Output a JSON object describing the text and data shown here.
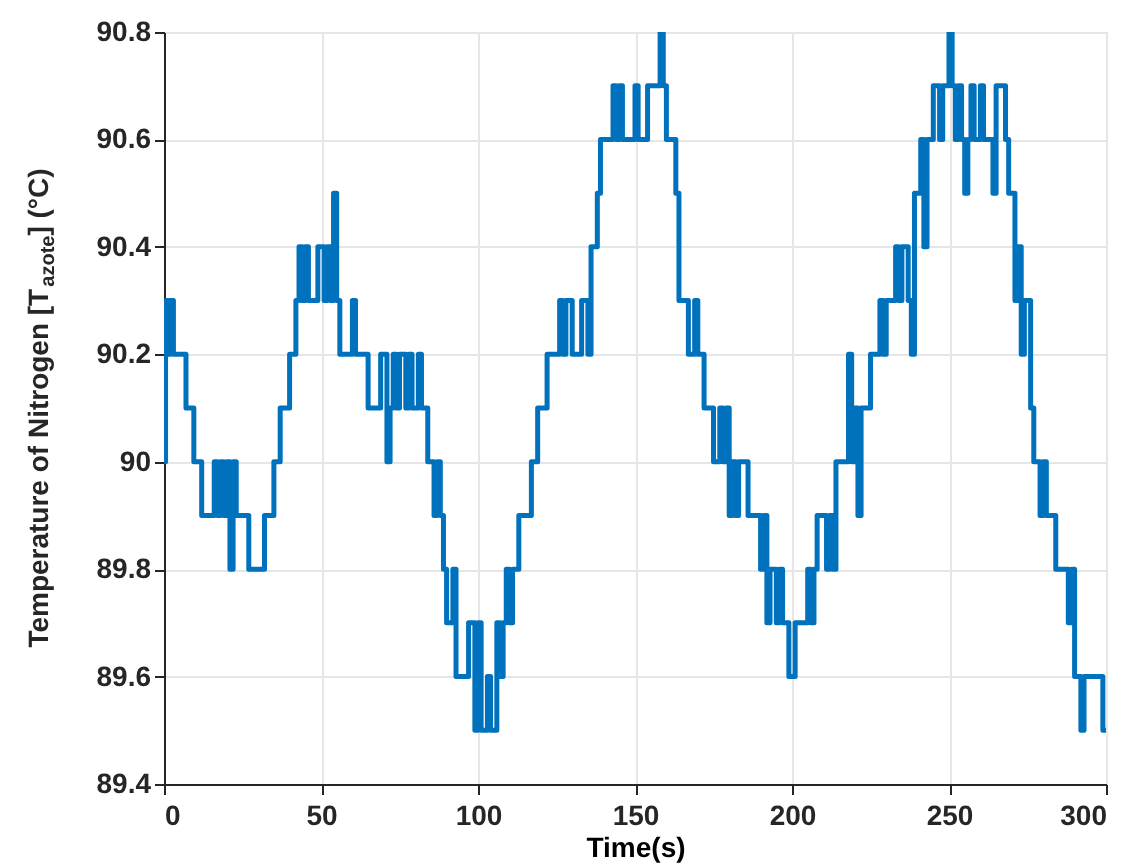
{
  "chart_data": {
    "type": "step",
    "xlabel": "Time(s)",
    "ylabel": "Temperature of Nitrogen [T$_{azote}$] (°C)",
    "xlim": [
      0,
      300
    ],
    "xticks": [
      0,
      50,
      100,
      150,
      200,
      250,
      300
    ],
    "ylim": [
      89.4,
      90.8
    ],
    "yticks": [
      89.4,
      89.6,
      89.8,
      90,
      90.2,
      90.4,
      90.6,
      90.8
    ],
    "grid": true,
    "line_style": "solid",
    "series": [
      {
        "color": "#0072bd",
        "x": [
          0,
          0.5,
          1.5,
          2,
          3,
          7,
          9.5,
          12,
          16,
          17,
          18,
          19,
          20,
          21,
          22,
          23,
          27,
          32,
          35,
          37,
          40,
          42,
          43,
          44,
          45,
          46,
          49,
          51,
          52,
          53,
          54,
          55,
          56,
          60,
          61,
          65,
          69,
          71,
          72,
          73,
          74,
          75,
          77,
          78,
          79,
          81,
          82,
          84,
          86,
          87,
          88,
          89,
          90,
          92,
          93,
          97,
          99,
          100,
          101,
          103,
          104,
          106,
          107,
          108,
          109,
          110,
          111,
          113,
          117,
          119,
          122,
          126,
          127,
          128,
          130,
          133,
          135,
          136,
          138,
          139,
          143,
          144,
          145,
          146,
          150,
          151,
          154,
          158,
          159,
          160,
          163,
          164,
          167,
          169,
          170,
          172,
          175,
          177,
          178,
          179,
          180,
          181,
          182,
          183,
          186,
          190,
          191,
          192,
          193,
          195,
          196,
          197,
          199,
          201,
          205,
          206,
          207,
          208,
          209,
          211,
          212,
          213,
          214,
          218,
          219,
          220,
          221,
          222,
          225,
          228,
          229,
          230,
          233,
          234,
          235,
          237,
          238,
          239,
          241,
          242,
          243,
          245,
          247,
          248,
          250,
          251,
          252,
          253,
          254,
          255,
          256,
          257,
          258,
          260,
          261,
          264,
          265,
          268,
          269,
          271,
          272,
          273,
          274,
          276,
          277,
          279,
          280,
          281,
          284,
          288,
          289,
          290,
          292,
          293,
          299,
          300
        ],
        "values": [
          90.0,
          90.3,
          90.2,
          90.3,
          90.2,
          90.1,
          90.0,
          89.9,
          90.0,
          89.9,
          90.0,
          89.9,
          90.0,
          89.8,
          90.0,
          89.9,
          89.8,
          89.9,
          90.0,
          90.1,
          90.2,
          90.3,
          90.4,
          90.3,
          90.4,
          90.3,
          90.4,
          90.3,
          90.4,
          90.3,
          90.5,
          90.3,
          90.2,
          90.3,
          90.2,
          90.1,
          90.2,
          90.0,
          90.1,
          90.2,
          90.1,
          90.2,
          90.1,
          90.2,
          90.1,
          90.2,
          90.1,
          90.0,
          89.9,
          90.0,
          89.9,
          89.8,
          89.7,
          89.8,
          89.6,
          89.7,
          89.5,
          89.7,
          89.5,
          89.6,
          89.5,
          89.7,
          89.6,
          89.7,
          89.8,
          89.7,
          89.8,
          89.9,
          90.0,
          90.1,
          90.2,
          90.3,
          90.2,
          90.3,
          90.2,
          90.3,
          90.2,
          90.4,
          90.5,
          90.6,
          90.7,
          90.6,
          90.7,
          90.6,
          90.7,
          90.6,
          90.7,
          90.8,
          90.7,
          90.6,
          90.5,
          90.3,
          90.2,
          90.3,
          90.2,
          90.1,
          90.0,
          90.1,
          90.0,
          90.1,
          89.9,
          90.0,
          89.9,
          90.0,
          89.9,
          89.8,
          89.9,
          89.7,
          89.8,
          89.7,
          89.8,
          89.7,
          89.6,
          89.7,
          89.8,
          89.7,
          89.8,
          89.9,
          89.9,
          89.8,
          89.9,
          89.8,
          90.0,
          90.2,
          90.0,
          90.1,
          89.9,
          90.1,
          90.2,
          90.3,
          90.2,
          90.3,
          90.4,
          90.3,
          90.4,
          90.3,
          90.2,
          90.5,
          90.6,
          90.4,
          90.6,
          90.7,
          90.6,
          90.7,
          90.8,
          90.7,
          90.6,
          90.7,
          90.6,
          90.5,
          90.6,
          90.7,
          90.6,
          90.7,
          90.6,
          90.5,
          90.7,
          90.6,
          90.5,
          90.3,
          90.4,
          90.2,
          90.3,
          90.1,
          90.0,
          89.9,
          90.0,
          89.9,
          89.8,
          89.7,
          89.8,
          89.6,
          89.5,
          89.6,
          89.5,
          89.5
        ]
      }
    ]
  }
}
